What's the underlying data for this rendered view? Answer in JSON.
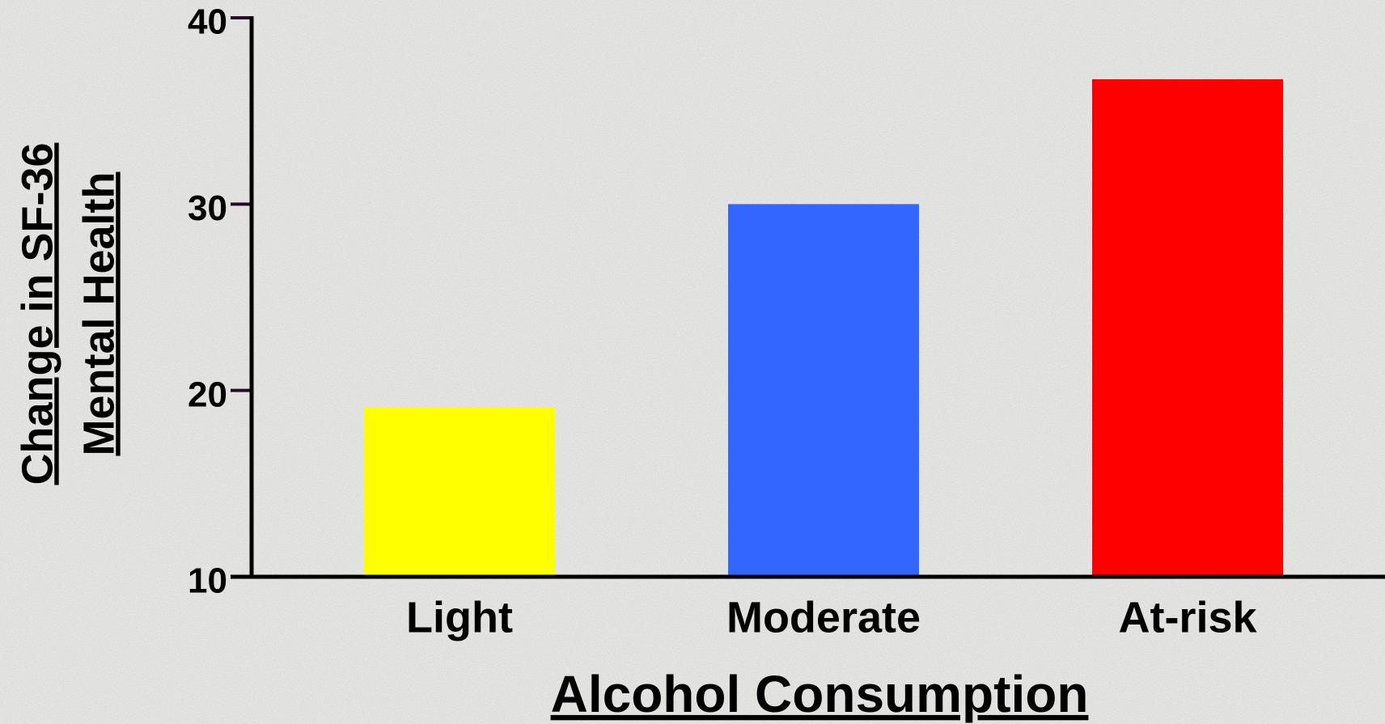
{
  "chart_data": {
    "type": "bar",
    "xlabel": "Alcohol Consumption",
    "ylabel": [
      "Change in SF-36",
      "Mental Health"
    ],
    "categories": [
      "Light",
      "Moderate",
      "At-risk"
    ],
    "values": [
      19.1,
      30.0,
      36.7
    ],
    "colors": [
      "#ffff00",
      "#3366ff",
      "#ff0000"
    ],
    "ylim": [
      10,
      40
    ],
    "yticks": [
      10,
      20,
      30,
      40
    ],
    "grid": false
  }
}
